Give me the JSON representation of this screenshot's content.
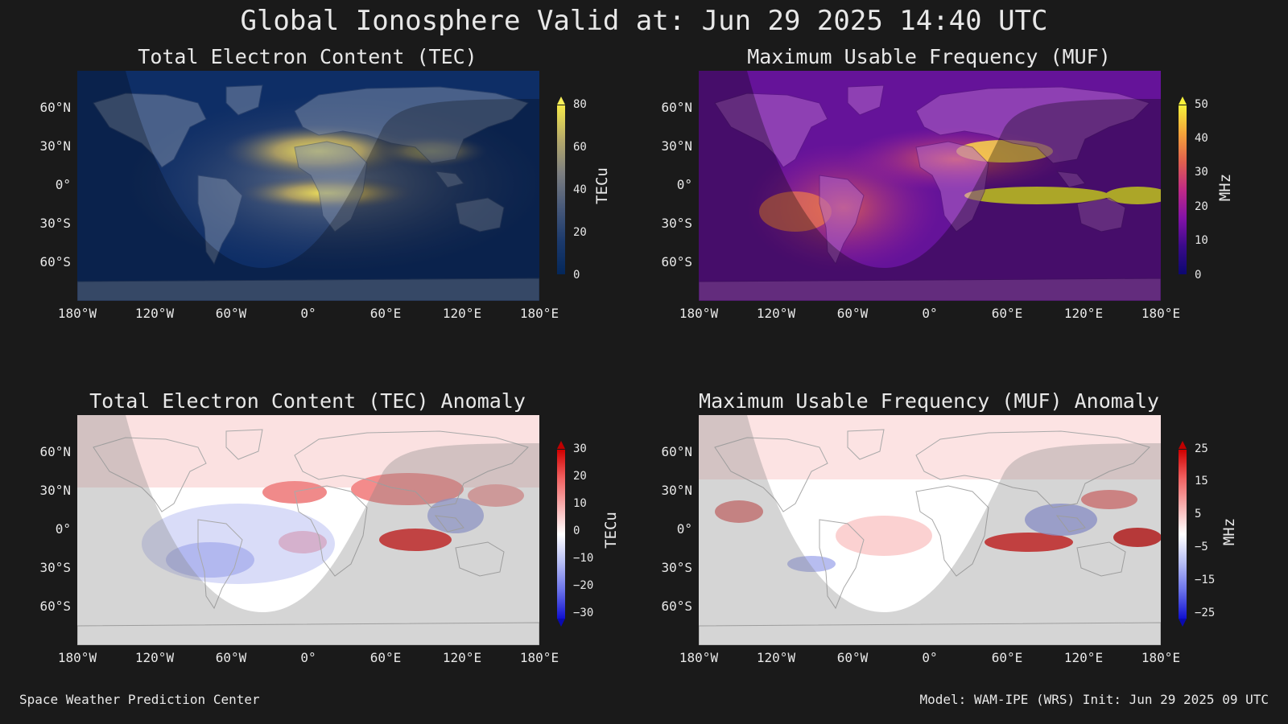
{
  "title": "Global Ionosphere Valid at: Jun 29 2025 14:40 UTC",
  "footer_left": "Space Weather Prediction Center",
  "footer_right": "Model: WAM-IPE (WRS) Init: Jun 29 2025 09 UTC",
  "lat_ticks": [
    "60°N",
    "30°N",
    "0°",
    "30°S",
    "60°S"
  ],
  "lon_ticks": [
    "180°W",
    "120°W",
    "60°W",
    "0°",
    "60°E",
    "120°E",
    "180°E"
  ],
  "panels": [
    {
      "id": "tec",
      "title": "Total Electron Content (TEC)",
      "colorbar_label": "TECu",
      "colorbar_ticks": [
        "80",
        "60",
        "40",
        "20",
        "0"
      ],
      "colormap": "cividis-like",
      "colors": {
        "low": "#0a2a5c",
        "high": "#f5e94a"
      }
    },
    {
      "id": "muf",
      "title": "Maximum Usable Frequency (MUF)",
      "colorbar_label": "MHz",
      "colorbar_ticks": [
        "50",
        "40",
        "30",
        "20",
        "10",
        "0"
      ],
      "colormap": "plasma-like",
      "colors": {
        "low": "#1a0a6b",
        "high": "#f7f03a"
      }
    },
    {
      "id": "tec_anom",
      "title": "Total Electron Content (TEC) Anomaly",
      "colorbar_label": "TECu",
      "colorbar_ticks": [
        "30",
        "20",
        "10",
        "0",
        "−10",
        "−20",
        "−30"
      ],
      "colormap": "bwr",
      "colors": {
        "low": "#1010d0",
        "high": "#d00000"
      }
    },
    {
      "id": "muf_anom",
      "title": "Maximum Usable Frequency (MUF) Anomaly",
      "colorbar_label": "MHz",
      "colorbar_ticks": [
        "25",
        "15",
        "5",
        "−5",
        "−15",
        "−25"
      ],
      "colormap": "bwr",
      "colors": {
        "low": "#1010d0",
        "high": "#d00000"
      }
    }
  ]
}
